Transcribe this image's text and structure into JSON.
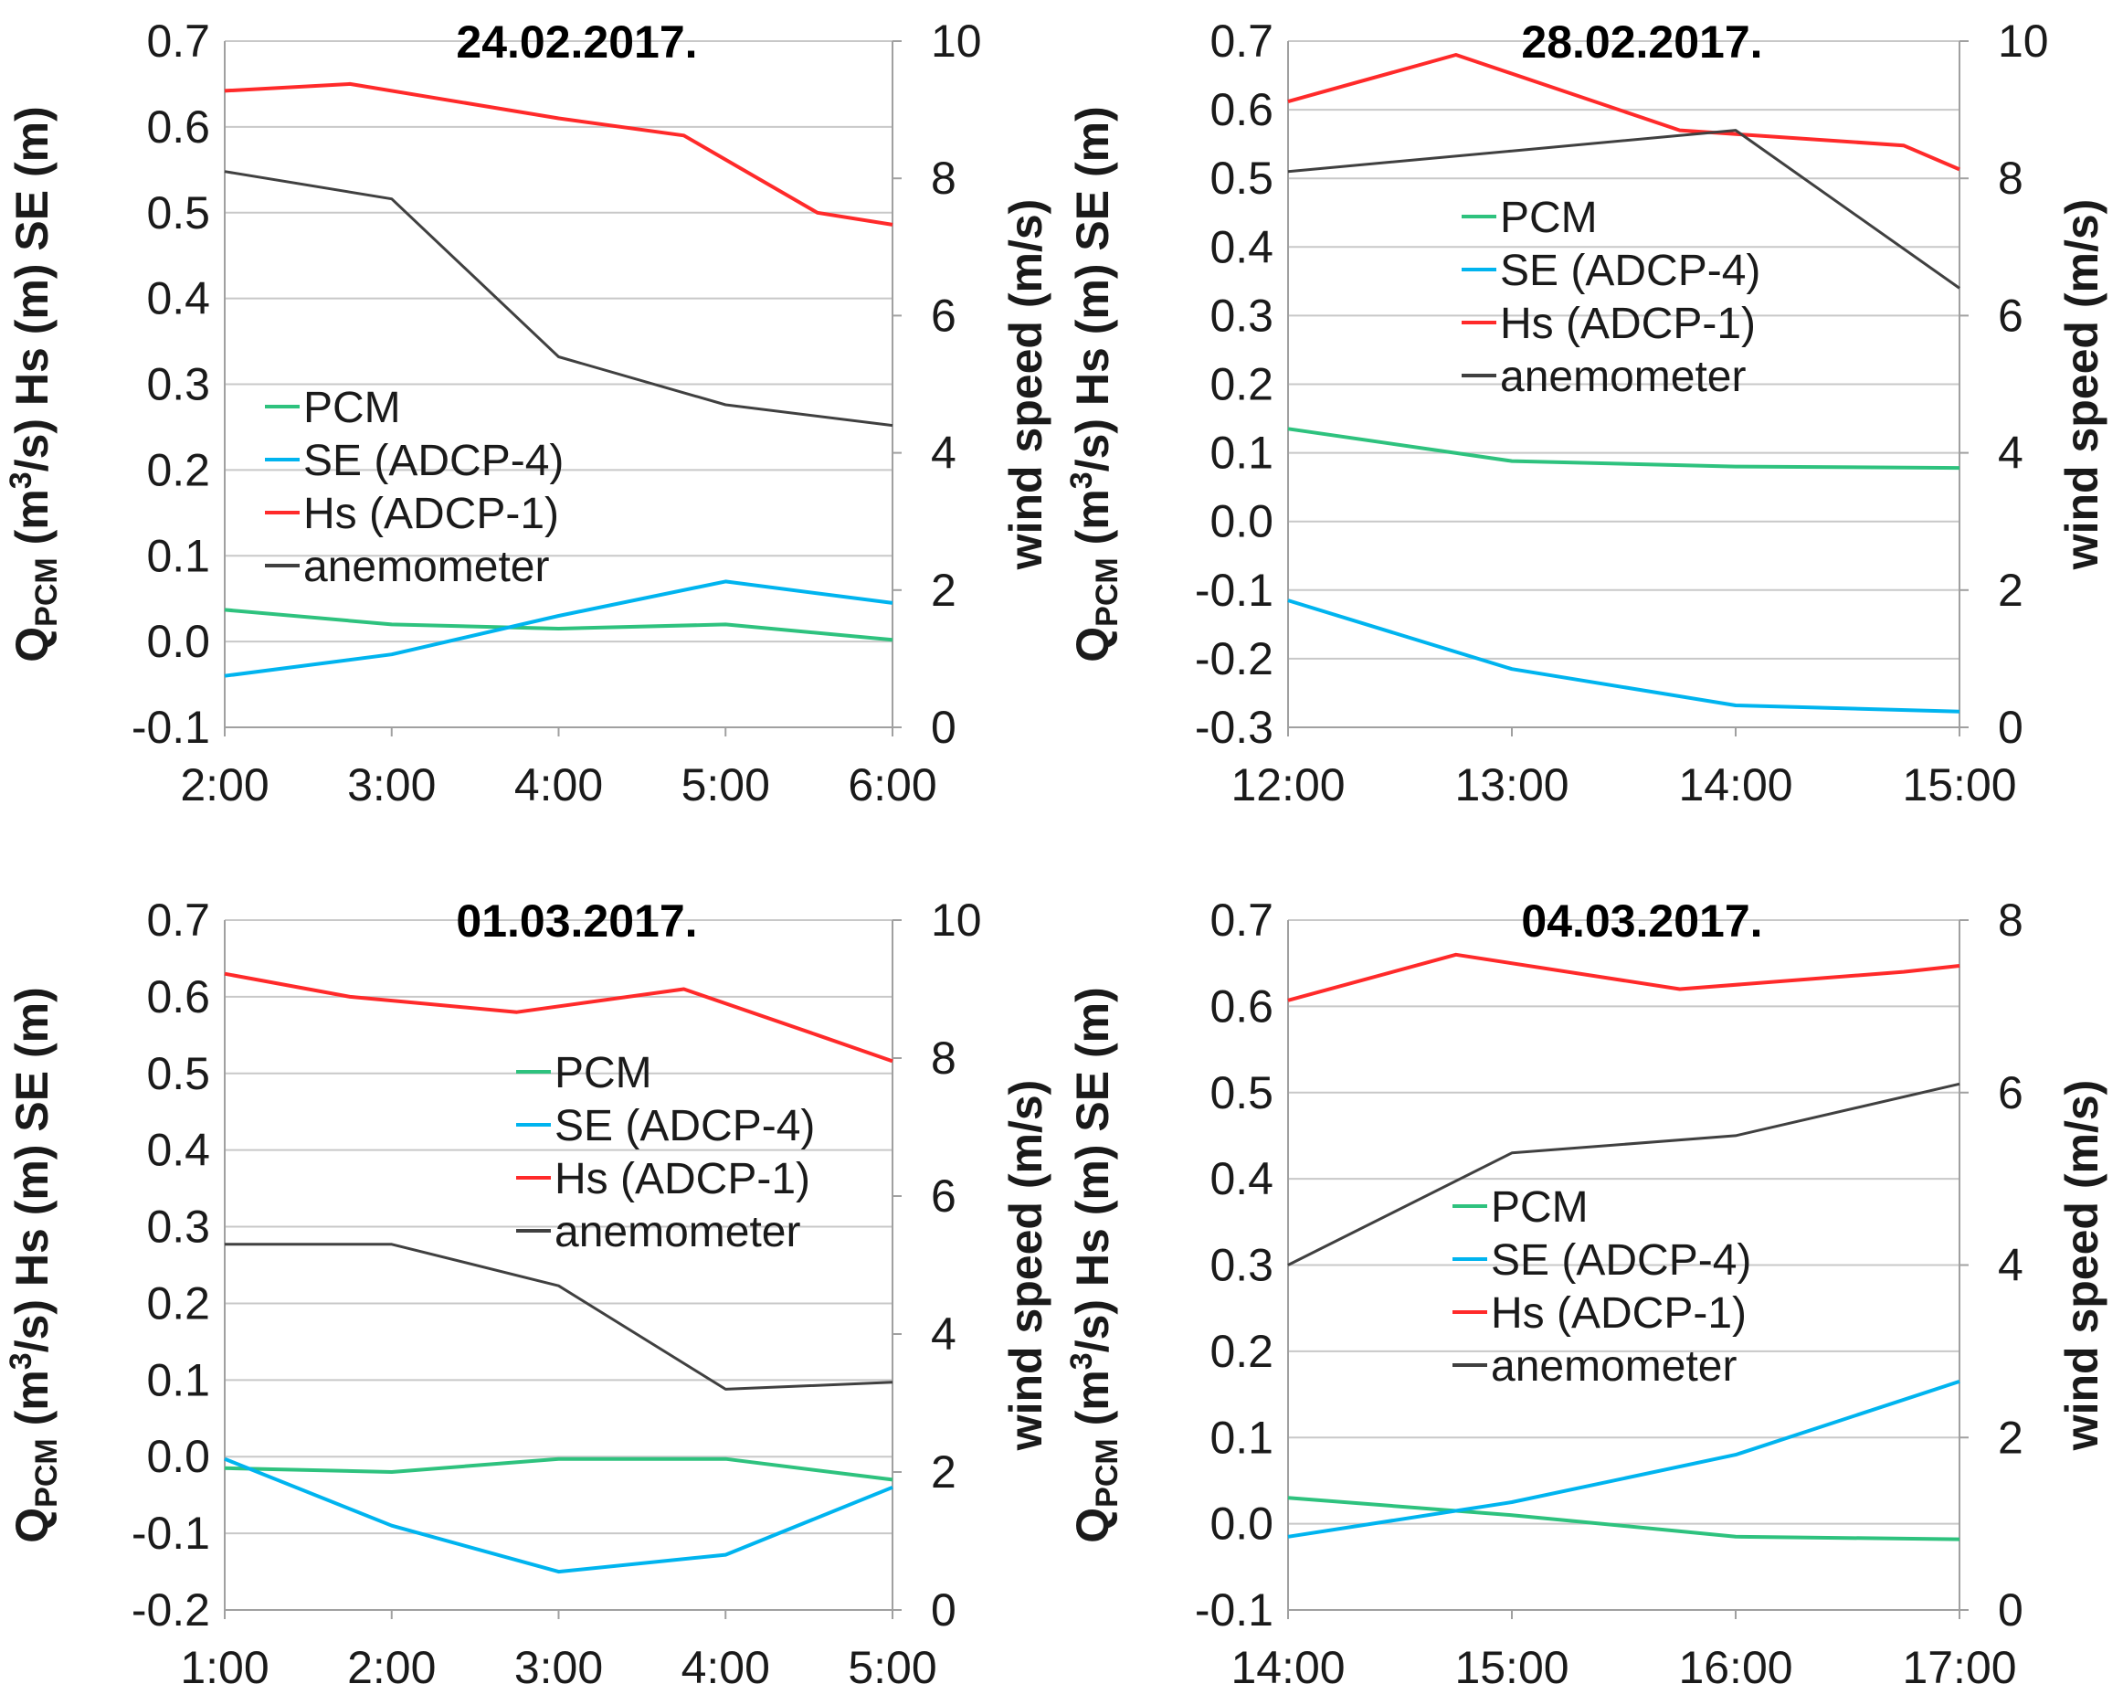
{
  "chart_data": [
    {
      "type": "line",
      "title": "24.02.2017.",
      "x": [
        "2:00",
        "3:00",
        "4:00",
        "5:00",
        "6:00"
      ],
      "x_positions": [
        0,
        1,
        2,
        3,
        4
      ],
      "xlim": [
        0,
        4
      ],
      "ylim": [
        -0.1,
        0.7
      ],
      "ylabel_parts": [
        "Q",
        "PCM",
        " (m",
        "3",
        "/s) Hs (m) SE (m)"
      ],
      "yticks": [
        "-0.1",
        "0.0",
        "0.1",
        "0.2",
        "0.3",
        "0.4",
        "0.5",
        "0.6",
        "0.7"
      ],
      "y2label": "wind speed (m/s)",
      "y2lim": [
        0,
        10
      ],
      "y2ticks": [
        "0",
        "2",
        "4",
        "6",
        "8",
        "10"
      ],
      "legend": "center-left",
      "series": [
        {
          "name": "PCM",
          "axis": "left",
          "color": "#2ec27e",
          "x": [
            0,
            1,
            2,
            3,
            4
          ],
          "values": [
            0.037,
            0.02,
            0.015,
            0.02,
            0.002
          ]
        },
        {
          "name": "SE (ADCP-4)",
          "axis": "left",
          "color": "#00b4ef",
          "x": [
            0,
            1,
            2,
            3,
            4
          ],
          "values": [
            -0.04,
            -0.015,
            0.03,
            0.07,
            0.045
          ]
        },
        {
          "name": "Hs (ADCP-1)",
          "axis": "left",
          "color": "#ff2a2a",
          "x": [
            0,
            0.75,
            2,
            2.75,
            3.55,
            4
          ],
          "values": [
            0.642,
            0.65,
            0.61,
            0.59,
            0.5,
            0.486
          ]
        },
        {
          "name": "anemometer",
          "axis": "right",
          "color": "#404040",
          "x": [
            0,
            1,
            2,
            3,
            4
          ],
          "values": [
            8.1,
            7.7,
            5.4,
            4.7,
            4.4
          ]
        }
      ]
    },
    {
      "type": "line",
      "title": "28.02.2017.",
      "x": [
        "12:00",
        "13:00",
        "14:00",
        "15:00"
      ],
      "x_positions": [
        0,
        1,
        2,
        3
      ],
      "xlim": [
        0,
        3
      ],
      "ylim": [
        -0.3,
        0.7
      ],
      "ylabel_parts": [
        "Q",
        "PCM",
        " (m",
        "3",
        "/s) Hs (m) SE (m)"
      ],
      "yticks": [
        "-0.3",
        "-0.2",
        "-0.1",
        "0.0",
        "0.1",
        "0.2",
        "0.3",
        "0.4",
        "0.5",
        "0.6",
        "0.7"
      ],
      "y2label": "wind speed (m/s)",
      "y2lim": [
        0,
        10
      ],
      "y2ticks": [
        "0",
        "2",
        "4",
        "6",
        "8",
        "10"
      ],
      "legend": "center-right",
      "series": [
        {
          "name": "PCM",
          "axis": "left",
          "color": "#2ec27e",
          "x": [
            0,
            1,
            2,
            3
          ],
          "values": [
            0.135,
            0.088,
            0.08,
            0.078
          ]
        },
        {
          "name": "SE (ADCP-4)",
          "axis": "left",
          "color": "#00b4ef",
          "x": [
            0,
            1,
            2,
            3
          ],
          "values": [
            -0.115,
            -0.215,
            -0.268,
            -0.277
          ]
        },
        {
          "name": "Hs (ADCP-1)",
          "axis": "left",
          "color": "#ff2a2a",
          "x": [
            0,
            0.75,
            1.75,
            2.75,
            3
          ],
          "values": [
            0.612,
            0.68,
            0.57,
            0.548,
            0.513
          ]
        },
        {
          "name": "anemometer",
          "axis": "right",
          "color": "#404040",
          "x": [
            0,
            1,
            2,
            3
          ],
          "values": [
            8.1,
            8.4,
            8.7,
            6.4
          ]
        }
      ]
    },
    {
      "type": "line",
      "title": "01.03.2017.",
      "x": [
        "1:00",
        "2:00",
        "3:00",
        "4:00",
        "5:00"
      ],
      "x_positions": [
        0,
        1,
        2,
        3,
        4
      ],
      "xlim": [
        0,
        4
      ],
      "ylim": [
        -0.2,
        0.7
      ],
      "ylabel_parts": [
        "Q",
        "PCM",
        " (m",
        "3",
        "/s) Hs (m) SE (m)"
      ],
      "yticks": [
        "-0.2",
        "-0.1",
        "0.0",
        "0.1",
        "0.2",
        "0.3",
        "0.4",
        "0.5",
        "0.6",
        "0.7"
      ],
      "y2label": "wind speed (m/s)",
      "y2lim": [
        0,
        10
      ],
      "y2ticks": [
        "0",
        "2",
        "4",
        "6",
        "8",
        "10"
      ],
      "legend": "center-right",
      "series": [
        {
          "name": "PCM",
          "axis": "left",
          "color": "#2ec27e",
          "x": [
            0,
            1,
            2,
            3,
            4
          ],
          "values": [
            -0.015,
            -0.02,
            -0.003,
            -0.003,
            -0.03
          ]
        },
        {
          "name": "SE (ADCP-4)",
          "axis": "left",
          "color": "#00b4ef",
          "x": [
            0,
            1,
            2,
            3,
            4
          ],
          "values": [
            -0.003,
            -0.09,
            -0.15,
            -0.128,
            -0.04
          ]
        },
        {
          "name": "Hs (ADCP-1)",
          "axis": "left",
          "color": "#ff2a2a",
          "x": [
            0,
            0.75,
            1.75,
            2.75,
            3.55,
            4
          ],
          "values": [
            0.63,
            0.6,
            0.58,
            0.61,
            0.55,
            0.516
          ]
        },
        {
          "name": "anemometer",
          "axis": "right",
          "color": "#404040",
          "x": [
            0,
            1,
            2,
            3,
            4
          ],
          "values": [
            5.3,
            5.3,
            4.7,
            3.2,
            3.3
          ]
        }
      ]
    },
    {
      "type": "line",
      "title": "04.03.2017.",
      "x": [
        "14:00",
        "15:00",
        "16:00",
        "17:00"
      ],
      "x_positions": [
        0,
        1,
        2,
        3
      ],
      "xlim": [
        0,
        3
      ],
      "ylim": [
        -0.1,
        0.7
      ],
      "ylabel_parts": [
        "Q",
        "PCM",
        " (m",
        "3",
        "/s) Hs (m) SE (m)"
      ],
      "yticks": [
        "-0.1",
        "0.0",
        "0.1",
        "0.2",
        "0.3",
        "0.4",
        "0.5",
        "0.6",
        "0.7"
      ],
      "y2label": "wind speed (m/s)",
      "y2lim": [
        0,
        8
      ],
      "y2ticks": [
        "0",
        "2",
        "4",
        "6",
        "8"
      ],
      "legend": "center-left",
      "series": [
        {
          "name": "PCM",
          "axis": "left",
          "color": "#2ec27e",
          "x": [
            0,
            1,
            2,
            3
          ],
          "values": [
            0.03,
            0.01,
            -0.015,
            -0.018
          ]
        },
        {
          "name": "SE (ADCP-4)",
          "axis": "left",
          "color": "#00b4ef",
          "x": [
            0,
            1,
            2,
            3
          ],
          "values": [
            -0.015,
            0.025,
            0.08,
            0.165
          ]
        },
        {
          "name": "Hs (ADCP-1)",
          "axis": "left",
          "color": "#ff2a2a",
          "x": [
            0,
            0.75,
            1.75,
            2.75,
            3
          ],
          "values": [
            0.607,
            0.66,
            0.62,
            0.64,
            0.647
          ]
        },
        {
          "name": "anemometer",
          "axis": "right",
          "color": "#404040",
          "x": [
            0,
            1,
            2,
            3
          ],
          "values": [
            4.0,
            5.3,
            5.5,
            6.1
          ]
        }
      ]
    }
  ]
}
